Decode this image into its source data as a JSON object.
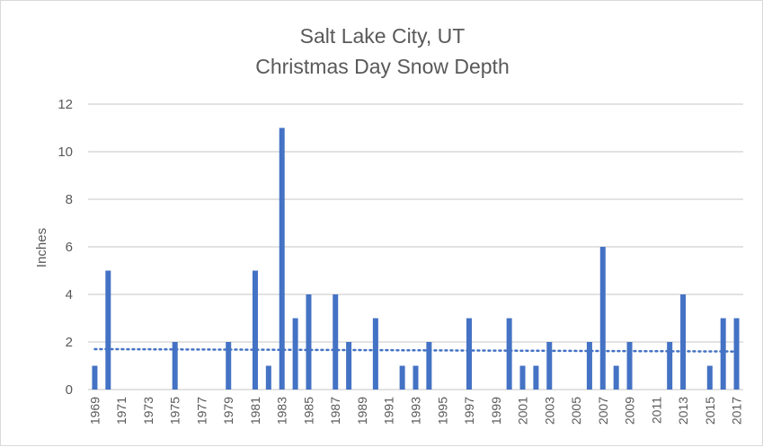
{
  "chart_data": {
    "type": "bar",
    "title": "Salt Lake City, UT",
    "subtitle": "Christmas Day Snow Depth",
    "xlabel": "",
    "ylabel": "Inches",
    "ylim": [
      0,
      12
    ],
    "yticks": [
      "0",
      "2",
      "4",
      "6",
      "8",
      "10",
      "12"
    ],
    "grid": true,
    "bar_color": "#4472C4",
    "trendline": {
      "type": "linear",
      "style": "dotted",
      "start": 1.7,
      "end": 1.6
    },
    "x_labels_shown": [
      "1969",
      "1971",
      "1973",
      "1975",
      "1977",
      "1979",
      "1981",
      "1983",
      "1985",
      "1987",
      "1989",
      "1991",
      "1993",
      "1995",
      "1997",
      "1999",
      "2001",
      "2003",
      "2005",
      "2007",
      "2009",
      "2011",
      "2013",
      "2015",
      "2017"
    ],
    "categories": [
      "1969",
      "1970",
      "1971",
      "1972",
      "1973",
      "1974",
      "1975",
      "1976",
      "1977",
      "1978",
      "1979",
      "1980",
      "1981",
      "1982",
      "1983",
      "1984",
      "1985",
      "1986",
      "1987",
      "1988",
      "1989",
      "1990",
      "1991",
      "1992",
      "1993",
      "1994",
      "1995",
      "1996",
      "1997",
      "1998",
      "1999",
      "2000",
      "2001",
      "2002",
      "2003",
      "2004",
      "2005",
      "2006",
      "2007",
      "2008",
      "2009",
      "2010",
      "2011",
      "2012",
      "2013",
      "2014",
      "2015",
      "2016",
      "2017"
    ],
    "values": [
      1,
      5,
      0,
      0,
      0,
      0,
      2,
      0,
      0,
      0,
      2,
      0,
      5,
      1,
      11,
      3,
      4,
      0,
      4,
      2,
      0,
      3,
      0,
      1,
      1,
      2,
      0,
      0,
      3,
      0,
      0,
      3,
      1,
      1,
      2,
      0,
      0,
      2,
      6,
      1,
      2,
      0,
      0,
      2,
      4,
      0,
      1,
      3,
      3
    ]
  }
}
